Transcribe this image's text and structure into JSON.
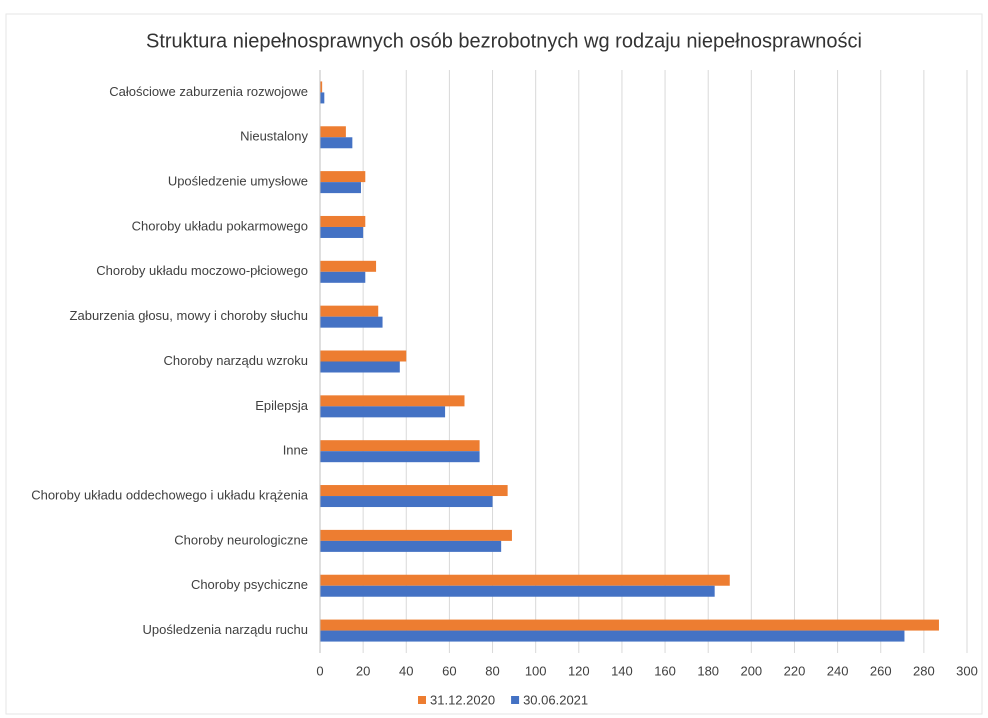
{
  "chart_data": {
    "type": "barh",
    "title": "Struktura niepełnosprawnych osób bezrobotnych wg rodzaju niepełnosprawności",
    "categories": [
      "Całościowe zaburzenia rozwojowe",
      "Nieustalony",
      "Upośledzenie umysłowe",
      "Choroby układu pokarmowego",
      "Choroby układu moczowo-płciowego",
      "Zaburzenia głosu, mowy i choroby słuchu",
      "Choroby narządu wzroku",
      "Epilepsja",
      "Inne",
      "Choroby układu oddechowego i układu krążenia",
      "Choroby neurologiczne",
      "Choroby psychiczne",
      "Upośledzenia narządu ruchu"
    ],
    "series": [
      {
        "name": "31.12.2020",
        "color": "#ed7d31",
        "values": [
          1,
          12,
          21,
          21,
          26,
          27,
          40,
          67,
          74,
          87,
          89,
          190,
          287
        ]
      },
      {
        "name": "30.06.2021",
        "color": "#4472c4",
        "values": [
          2,
          15,
          19,
          20,
          21,
          29,
          37,
          58,
          74,
          80,
          84,
          183,
          271
        ]
      }
    ],
    "xlim": [
      0,
      300
    ],
    "xticks": [
      0,
      20,
      40,
      60,
      80,
      100,
      120,
      140,
      160,
      180,
      200,
      220,
      240,
      260,
      280,
      300
    ],
    "grid": true,
    "legend": "bottom"
  }
}
